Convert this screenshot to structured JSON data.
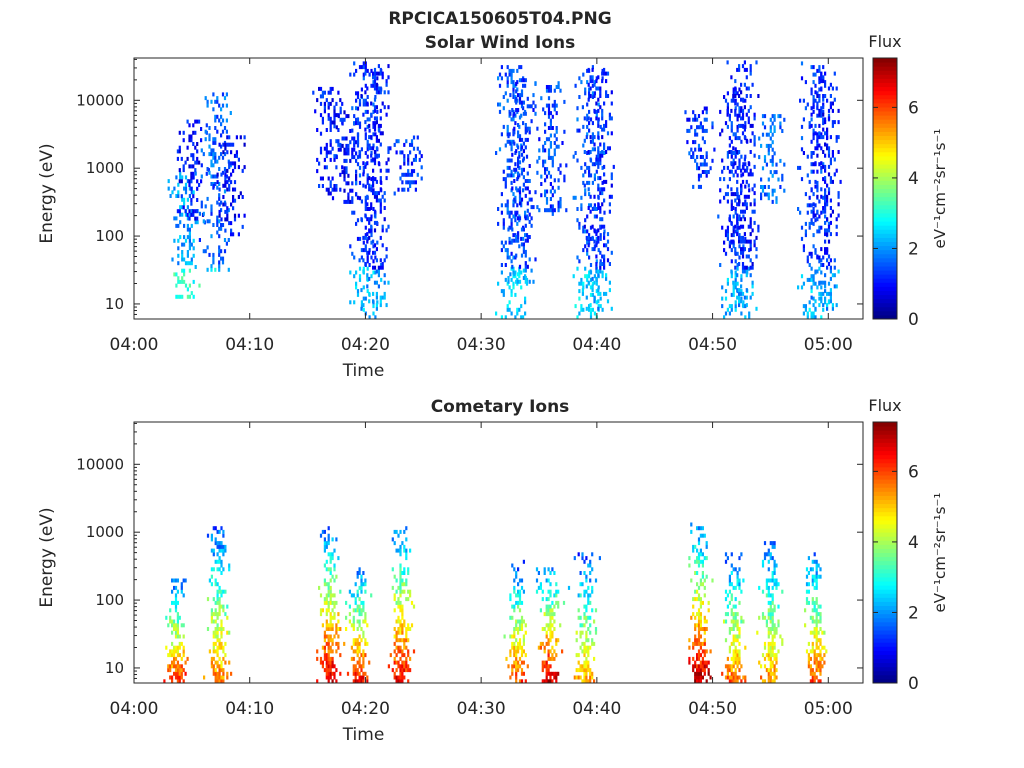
{
  "figure_title": "RPCICA150605T04.PNG",
  "colors": {
    "axis": "#262626",
    "background": "#ffffff"
  },
  "chart_data": [
    {
      "type": "heatmap",
      "title": "Solar Wind Ions",
      "xlabel": "Time",
      "ylabel": "Energy (eV)",
      "x_ticks": [
        "04:00",
        "04:10",
        "04:20",
        "04:30",
        "04:40",
        "04:50",
        "05:00"
      ],
      "x_range_minutes": [
        0,
        63
      ],
      "y_scale": "log",
      "y_ticks": [
        10,
        100,
        1000,
        10000
      ],
      "y_tick_labels": [
        "10",
        "100",
        "1000",
        "10000"
      ],
      "y_range": [
        6,
        42000
      ],
      "colorbar": {
        "title": "Flux",
        "label": "eV⁻¹cm⁻²sr⁻¹s⁻¹",
        "range": [
          0,
          7.4
        ],
        "ticks": [
          "0",
          "2",
          "4",
          "6"
        ],
        "colormap": "jet"
      },
      "bursts": [
        {
          "t": 4.3,
          "emin": 12,
          "emax": 800,
          "level": 2.1
        },
        {
          "t": 5.1,
          "emin": 150,
          "emax": 5000,
          "level": 1.0
        },
        {
          "t": 7.0,
          "emin": 30,
          "emax": 13000,
          "level": 1.6
        },
        {
          "t": 8.2,
          "emin": 100,
          "emax": 3000,
          "level": 1.0
        },
        {
          "t": 16.8,
          "emin": 400,
          "emax": 15000,
          "level": 1.1
        },
        {
          "t": 18.5,
          "emin": 300,
          "emax": 8000,
          "level": 1.0
        },
        {
          "t": 20.0,
          "emin": 6,
          "emax": 35000,
          "level": 1.3
        },
        {
          "t": 20.8,
          "emin": 8,
          "emax": 35000,
          "level": 1.1
        },
        {
          "t": 23.5,
          "emin": 400,
          "emax": 3000,
          "level": 1.3
        },
        {
          "t": 32.6,
          "emin": 6,
          "emax": 30000,
          "level": 1.5
        },
        {
          "t": 33.5,
          "emin": 20,
          "emax": 20000,
          "level": 1.3
        },
        {
          "t": 36.0,
          "emin": 200,
          "emax": 18000,
          "level": 1.4
        },
        {
          "t": 39.3,
          "emin": 6,
          "emax": 30000,
          "level": 1.5
        },
        {
          "t": 40.1,
          "emin": 8,
          "emax": 30000,
          "level": 1.2
        },
        {
          "t": 48.8,
          "emin": 500,
          "emax": 8000,
          "level": 1.3
        },
        {
          "t": 51.8,
          "emin": 6,
          "emax": 15000,
          "level": 1.2
        },
        {
          "t": 52.6,
          "emin": 8,
          "emax": 35000,
          "level": 1.1
        },
        {
          "t": 55.0,
          "emin": 300,
          "emax": 6000,
          "level": 1.7
        },
        {
          "t": 58.7,
          "emin": 6,
          "emax": 35000,
          "level": 1.3
        },
        {
          "t": 59.7,
          "emin": 8,
          "emax": 25000,
          "level": 1.1
        }
      ]
    },
    {
      "type": "heatmap",
      "title": "Cometary Ions",
      "xlabel": "Time",
      "ylabel": "Energy (eV)",
      "x_ticks": [
        "04:00",
        "04:10",
        "04:20",
        "04:30",
        "04:40",
        "04:50",
        "05:00"
      ],
      "x_range_minutes": [
        0,
        63
      ],
      "y_scale": "log",
      "y_ticks": [
        10,
        100,
        1000,
        10000
      ],
      "y_tick_labels": [
        "10",
        "100",
        "1000",
        "10000"
      ],
      "y_range": [
        6,
        42000
      ],
      "colorbar": {
        "title": "Flux",
        "label": "eV⁻¹cm⁻²sr⁻¹s⁻¹",
        "range": [
          0,
          7.4
        ],
        "ticks": [
          "0",
          "2",
          "4",
          "6"
        ],
        "colormap": "jet"
      },
      "bursts": [
        {
          "t": 3.6,
          "emin": 6,
          "emax": 200,
          "peak": 6.2
        },
        {
          "t": 7.2,
          "emin": 6,
          "emax": 1200,
          "peak": 5.6
        },
        {
          "t": 16.8,
          "emin": 6,
          "emax": 1200,
          "peak": 6.8
        },
        {
          "t": 19.3,
          "emin": 6,
          "emax": 300,
          "peak": 6.5
        },
        {
          "t": 23.0,
          "emin": 6,
          "emax": 1200,
          "peak": 6.6
        },
        {
          "t": 33.0,
          "emin": 6,
          "emax": 350,
          "peak": 6.0
        },
        {
          "t": 35.8,
          "emin": 6,
          "emax": 300,
          "peak": 6.9
        },
        {
          "t": 38.9,
          "emin": 6,
          "emax": 500,
          "peak": 5.3
        },
        {
          "t": 48.8,
          "emin": 6,
          "emax": 1300,
          "peak": 7.0
        },
        {
          "t": 51.8,
          "emin": 6,
          "emax": 500,
          "peak": 5.8
        },
        {
          "t": 55.0,
          "emin": 6,
          "emax": 800,
          "peak": 5.5
        },
        {
          "t": 58.8,
          "emin": 6,
          "emax": 500,
          "peak": 6.0
        }
      ]
    }
  ]
}
